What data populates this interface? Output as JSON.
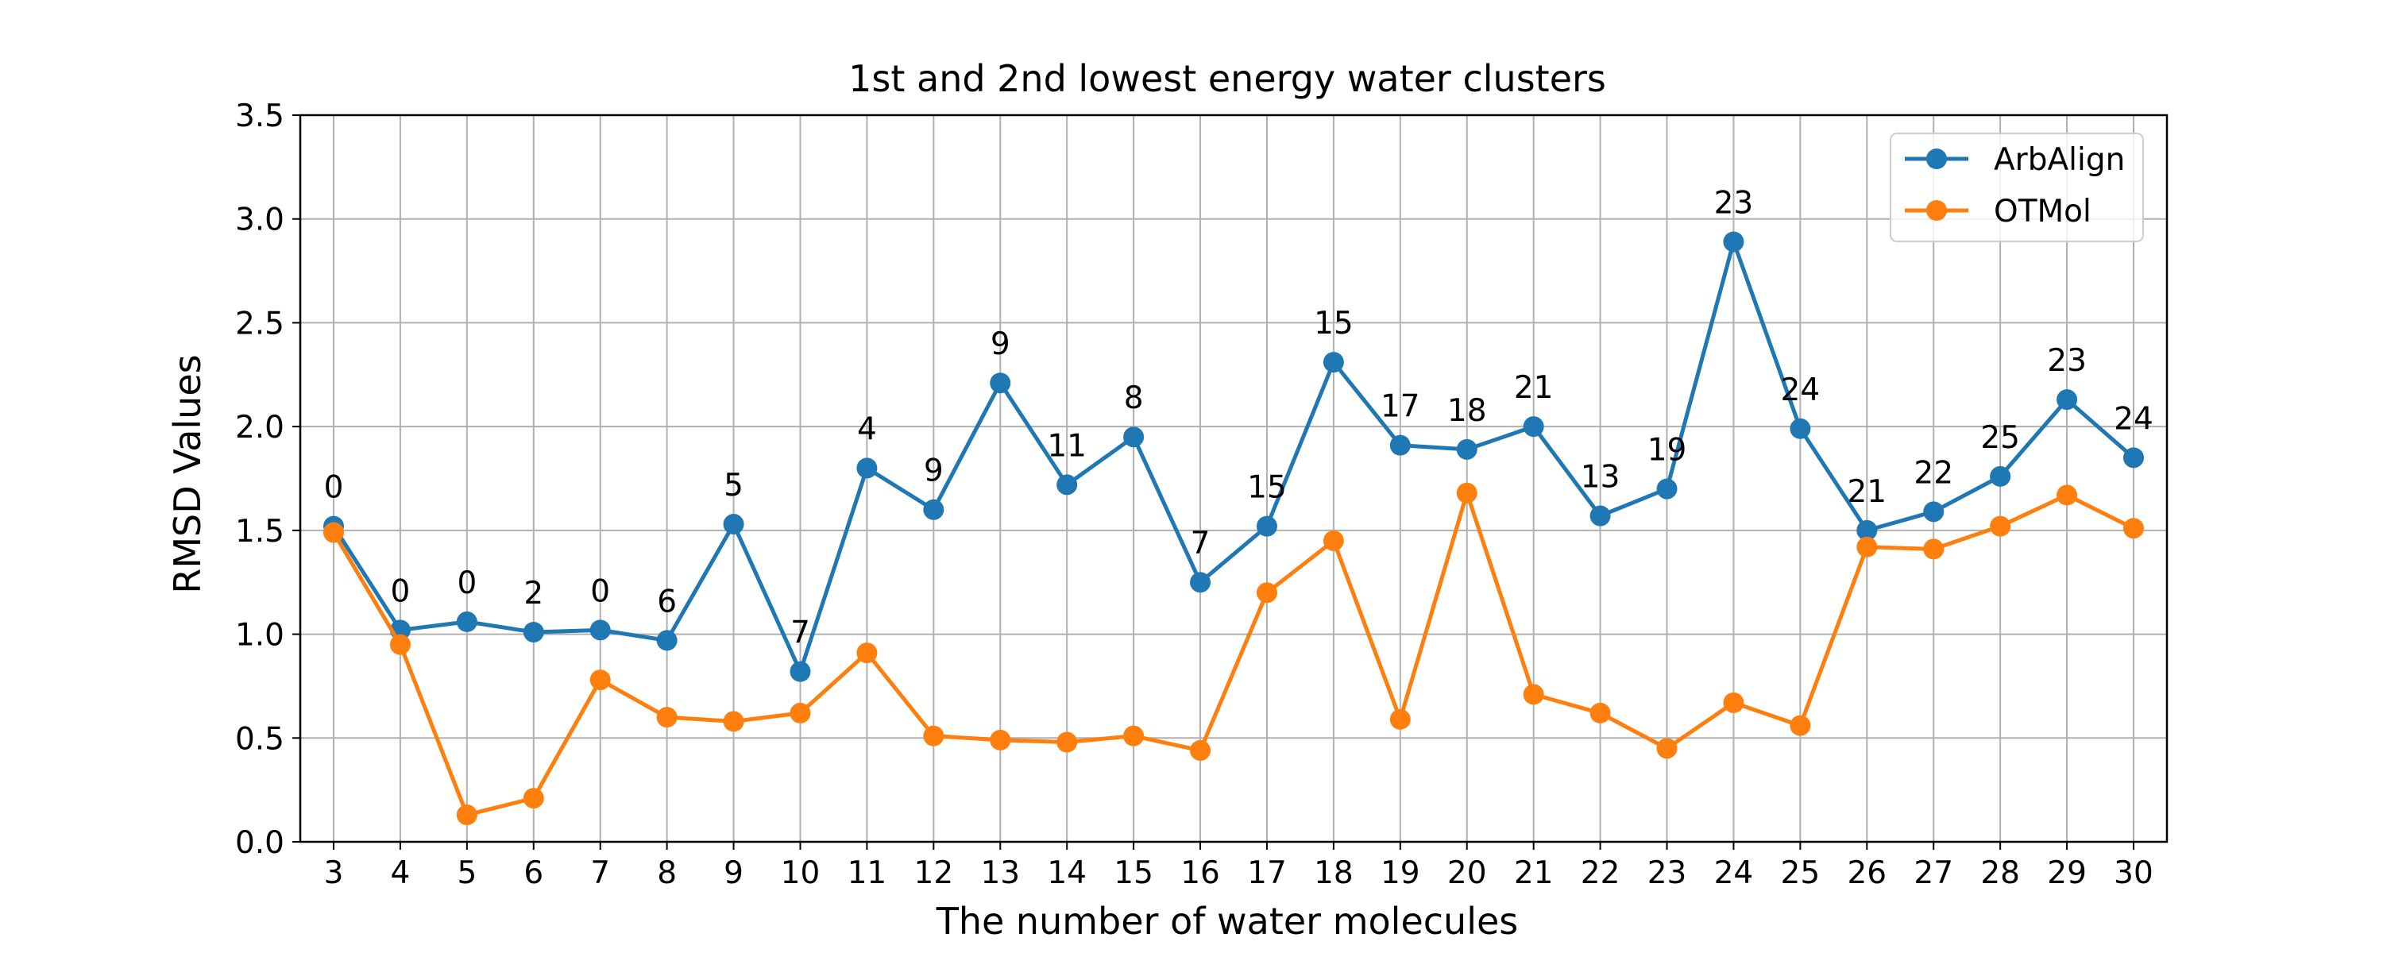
{
  "chart_data": {
    "type": "line",
    "title": "1st and 2nd lowest energy water clusters",
    "xlabel": "The number of water molecules",
    "ylabel": "RMSD Values",
    "x": [
      3,
      4,
      5,
      6,
      7,
      8,
      9,
      10,
      11,
      12,
      13,
      14,
      15,
      16,
      17,
      18,
      19,
      20,
      21,
      22,
      23,
      24,
      25,
      26,
      27,
      28,
      29,
      30
    ],
    "ylim": [
      0,
      3.5
    ],
    "yticks": [
      "0.0",
      "0.5",
      "1.0",
      "1.5",
      "2.0",
      "2.5",
      "3.0",
      "3.5"
    ],
    "grid": true,
    "legend_position": "top-right",
    "series": [
      {
        "name": "ArbAlign",
        "color": "#1f77b4",
        "values": [
          1.52,
          1.02,
          1.06,
          1.01,
          1.02,
          0.97,
          1.53,
          0.82,
          1.8,
          1.6,
          2.21,
          1.72,
          1.95,
          1.25,
          1.52,
          2.31,
          1.91,
          1.89,
          2.0,
          1.57,
          1.7,
          2.89,
          1.99,
          1.5,
          1.59,
          1.76,
          2.13,
          1.85
        ],
        "annotations": [
          "0",
          "0",
          "0",
          "2",
          "0",
          "6",
          "5",
          "7",
          "4",
          "9",
          "9",
          "11",
          "8",
          "7",
          "15",
          "15",
          "17",
          "18",
          "21",
          "13",
          "19",
          "23",
          "24",
          "21",
          "22",
          "25",
          "23",
          "24"
        ]
      },
      {
        "name": "OTMol",
        "color": "#ff7f0e",
        "values": [
          1.49,
          0.95,
          0.13,
          0.21,
          0.78,
          0.6,
          0.58,
          0.62,
          0.91,
          0.51,
          0.49,
          0.48,
          0.51,
          0.44,
          1.2,
          1.45,
          0.59,
          1.68,
          0.71,
          0.62,
          0.45,
          0.67,
          0.56,
          1.42,
          1.41,
          1.52,
          1.67,
          1.51
        ]
      }
    ]
  }
}
